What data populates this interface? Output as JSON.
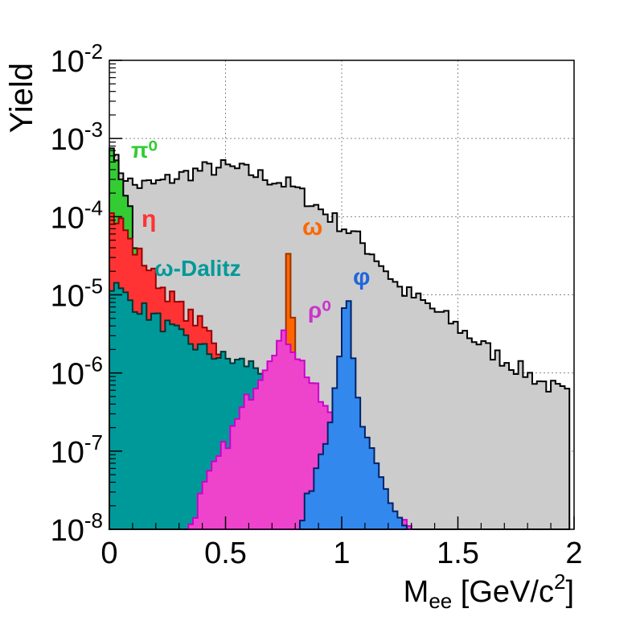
{
  "chart_data": {
    "type": "histogram",
    "title": "",
    "xlabel": "M",
    "xlabel_sub": "ee",
    "xlabel_units": " [GeV/c",
    "xlabel_units_sup": "2",
    "xlabel_units_end": "]",
    "ylabel": "Yield",
    "xlim": [
      0,
      2
    ],
    "ylim": [
      1e-08,
      0.01
    ],
    "yscale": "log",
    "grid": true,
    "xticks": [
      {
        "value": 0,
        "label": "0"
      },
      {
        "value": 0.5,
        "label": "0.5"
      },
      {
        "value": 1,
        "label": "1"
      },
      {
        "value": 1.5,
        "label": "1.5"
      },
      {
        "value": 2,
        "label": "2"
      }
    ],
    "yticks": [
      {
        "exp": -8,
        "base": "10",
        "sup": "-8"
      },
      {
        "exp": -7,
        "base": "10",
        "sup": "-7"
      },
      {
        "exp": -6,
        "base": "10",
        "sup": "-6"
      },
      {
        "exp": -5,
        "base": "10",
        "sup": "-5"
      },
      {
        "exp": -4,
        "base": "10",
        "sup": "-4"
      },
      {
        "exp": -3,
        "base": "10",
        "sup": "-3"
      },
      {
        "exp": -2,
        "base": "10",
        "sup": "-2"
      }
    ],
    "bin_width": 0.02,
    "series": [
      {
        "name": "",
        "key": "total",
        "fill": "#cccccc",
        "edge": "#000000",
        "points": [
          [
            0,
            0.0007
          ],
          [
            0.05,
            0.0004
          ],
          [
            0.1,
            0.00025
          ],
          [
            0.2,
            0.00026
          ],
          [
            0.3,
            0.00033
          ],
          [
            0.4,
            0.0004
          ],
          [
            0.5,
            0.00043
          ],
          [
            0.6,
            0.00037
          ],
          [
            0.7,
            0.0003
          ],
          [
            0.78,
            0.00025
          ],
          [
            0.85,
            0.00017
          ],
          [
            0.95,
            0.0001
          ],
          [
            1.05,
            6e-05
          ],
          [
            1.15,
            3e-05
          ],
          [
            1.25,
            1.2e-05
          ],
          [
            1.35,
            8e-06
          ],
          [
            1.45,
            5e-06
          ],
          [
            1.55,
            3e-06
          ],
          [
            1.65,
            1.8e-06
          ],
          [
            1.75,
            1.2e-06
          ],
          [
            1.85,
            8e-07
          ],
          [
            1.98,
            5e-07
          ]
        ]
      },
      {
        "name": "π⁰",
        "key": "pi0",
        "fill": "#33cc33",
        "edge": "#000000",
        "label_color": "#33cc33",
        "points": [
          [
            0,
            0.0007
          ],
          [
            0.04,
            0.0004
          ],
          [
            0.08,
            0.0002
          ],
          [
            0.1,
            0.00012
          ],
          [
            0.12,
            2e-05
          ],
          [
            0.14,
            1e-08
          ]
        ]
      },
      {
        "name": "η",
        "key": "eta",
        "fill": "#ff3333",
        "edge": "#990000",
        "label_color": "#ff3333",
        "points": [
          [
            0,
            0.00011
          ],
          [
            0.06,
            8e-05
          ],
          [
            0.1,
            4e-05
          ],
          [
            0.14,
            3e-05
          ],
          [
            0.2,
            1.6e-05
          ],
          [
            0.3,
            7e-06
          ],
          [
            0.4,
            4e-06
          ],
          [
            0.46,
            2.5e-06
          ],
          [
            0.5,
            1e-06
          ],
          [
            0.52,
            1e-08
          ]
        ]
      },
      {
        "name": "ω-Dalitz",
        "key": "omegaD",
        "fill": "#009999",
        "edge": "#003333",
        "label_color": "#009999",
        "points": [
          [
            0,
            1.5e-05
          ],
          [
            0.1,
            8e-06
          ],
          [
            0.2,
            5e-06
          ],
          [
            0.3,
            3e-06
          ],
          [
            0.4,
            2e-06
          ],
          [
            0.5,
            1.5e-06
          ],
          [
            0.6,
            1.3e-06
          ],
          [
            0.7,
            1e-06
          ],
          [
            0.76,
            5e-07
          ],
          [
            0.78,
            1e-08
          ]
        ]
      },
      {
        "name": "ω",
        "key": "omega",
        "fill": "#ff6600",
        "edge": "#993300",
        "label_color": "#ff6600",
        "points": [
          [
            0.38,
            1e-08
          ],
          [
            0.44,
            2e-08
          ],
          [
            0.5,
            5e-08
          ],
          [
            0.6,
            2e-07
          ],
          [
            0.7,
            7e-07
          ],
          [
            0.74,
            2e-06
          ],
          [
            0.76,
            8e-06
          ],
          [
            0.775,
            8e-05
          ],
          [
            0.79,
            5e-06
          ],
          [
            0.82,
            5e-07
          ],
          [
            0.86,
            1e-07
          ],
          [
            0.9,
            1e-08
          ]
        ]
      },
      {
        "name": "ρ⁰",
        "key": "rho",
        "fill": "#ee44cc",
        "edge": "#cc00cc",
        "label_color": "#cc33cc",
        "points": [
          [
            0.34,
            1e-08
          ],
          [
            0.4,
            3e-08
          ],
          [
            0.5,
            1.2e-07
          ],
          [
            0.6,
            5e-07
          ],
          [
            0.7,
            2e-06
          ],
          [
            0.76,
            3e-06
          ],
          [
            0.8,
            2e-06
          ],
          [
            0.9,
            5e-07
          ],
          [
            1.0,
            1.5e-07
          ],
          [
            1.1,
            5e-08
          ],
          [
            1.2,
            2e-08
          ],
          [
            1.3,
            1e-08
          ]
        ]
      },
      {
        "name": "φ",
        "key": "phi",
        "fill": "#3388ee",
        "edge": "#002266",
        "label_color": "#2266dd",
        "points": [
          [
            0.82,
            1e-08
          ],
          [
            0.88,
            5e-08
          ],
          [
            0.94,
            2e-07
          ],
          [
            0.98,
            1e-06
          ],
          [
            1.0,
            4e-06
          ],
          [
            1.02,
            1.5e-05
          ],
          [
            1.04,
            3e-06
          ],
          [
            1.06,
            6e-07
          ],
          [
            1.1,
            1.5e-07
          ],
          [
            1.16,
            5e-08
          ],
          [
            1.22,
            2e-08
          ],
          [
            1.28,
            1e-08
          ]
        ]
      }
    ]
  }
}
